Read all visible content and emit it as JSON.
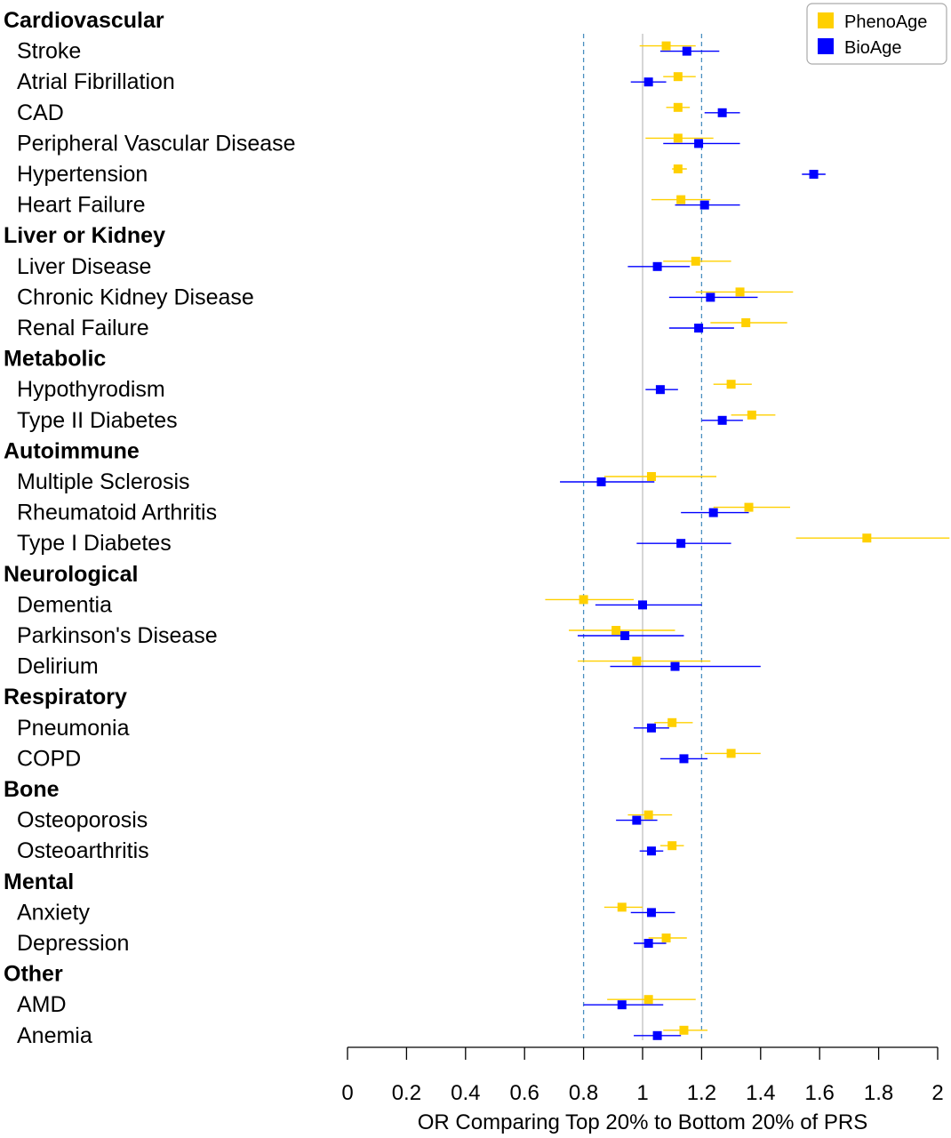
{
  "chart_data": {
    "type": "forest",
    "xlabel": "OR Comparing Top 20% to Bottom 20% of PRS",
    "xlim": [
      0,
      2
    ],
    "xticks": [
      "0",
      "0.2",
      "0.4",
      "0.6",
      "0.8",
      "1",
      "1.2",
      "1.4",
      "1.6",
      "1.8",
      "2"
    ],
    "xtick_values": [
      0,
      0.2,
      0.4,
      0.6,
      0.8,
      1,
      1.2,
      1.4,
      1.6,
      1.8,
      2
    ],
    "reference_line": 1,
    "dashed_lines": [
      0.8,
      1.2
    ],
    "legend_position": "top-right",
    "series": [
      {
        "name": "PhenoAge",
        "color": "#FFD000"
      },
      {
        "name": "BioAge",
        "color": "#0000FF"
      }
    ],
    "groups": [
      {
        "name": "Cardiovascular",
        "items": [
          {
            "label": "Stroke",
            "pheno": {
              "or": 1.08,
              "lo": 0.99,
              "hi": 1.18
            },
            "bio": {
              "or": 1.15,
              "lo": 1.06,
              "hi": 1.26
            }
          },
          {
            "label": "Atrial Fibrillation",
            "pheno": {
              "or": 1.12,
              "lo": 1.07,
              "hi": 1.18
            },
            "bio": {
              "or": 1.02,
              "lo": 0.96,
              "hi": 1.08
            }
          },
          {
            "label": "CAD",
            "pheno": {
              "or": 1.12,
              "lo": 1.08,
              "hi": 1.16
            },
            "bio": {
              "or": 1.27,
              "lo": 1.21,
              "hi": 1.33
            }
          },
          {
            "label": "Peripheral Vascular Disease",
            "pheno": {
              "or": 1.12,
              "lo": 1.01,
              "hi": 1.24
            },
            "bio": {
              "or": 1.19,
              "lo": 1.07,
              "hi": 1.33
            }
          },
          {
            "label": "Hypertension",
            "pheno": {
              "or": 1.12,
              "lo": 1.1,
              "hi": 1.15
            },
            "bio": {
              "or": 1.58,
              "lo": 1.54,
              "hi": 1.62
            }
          },
          {
            "label": "Heart Failure",
            "pheno": {
              "or": 1.13,
              "lo": 1.03,
              "hi": 1.23
            },
            "bio": {
              "or": 1.21,
              "lo": 1.11,
              "hi": 1.33
            }
          }
        ]
      },
      {
        "name": "Liver or Kidney",
        "items": [
          {
            "label": "Liver Disease",
            "pheno": {
              "or": 1.18,
              "lo": 1.07,
              "hi": 1.3
            },
            "bio": {
              "or": 1.05,
              "lo": 0.95,
              "hi": 1.16
            }
          },
          {
            "label": "Chronic Kidney Disease",
            "pheno": {
              "or": 1.33,
              "lo": 1.18,
              "hi": 1.51
            },
            "bio": {
              "or": 1.23,
              "lo": 1.09,
              "hi": 1.39
            }
          },
          {
            "label": "Renal Failure",
            "pheno": {
              "or": 1.35,
              "lo": 1.23,
              "hi": 1.49
            },
            "bio": {
              "or": 1.19,
              "lo": 1.09,
              "hi": 1.31
            }
          }
        ]
      },
      {
        "name": "Metabolic",
        "items": [
          {
            "label": "Hypothyrodism",
            "pheno": {
              "or": 1.3,
              "lo": 1.24,
              "hi": 1.37
            },
            "bio": {
              "or": 1.06,
              "lo": 1.01,
              "hi": 1.12
            }
          },
          {
            "label": "Type II Diabetes",
            "pheno": {
              "or": 1.37,
              "lo": 1.3,
              "hi": 1.45
            },
            "bio": {
              "or": 1.27,
              "lo": 1.2,
              "hi": 1.34
            }
          }
        ]
      },
      {
        "name": "Autoimmune",
        "items": [
          {
            "label": "Multiple Sclerosis",
            "pheno": {
              "or": 1.03,
              "lo": 0.87,
              "hi": 1.25
            },
            "bio": {
              "or": 0.86,
              "lo": 0.72,
              "hi": 1.04
            }
          },
          {
            "label": "Rheumatoid Arthritis",
            "pheno": {
              "or": 1.36,
              "lo": 1.24,
              "hi": 1.5
            },
            "bio": {
              "or": 1.24,
              "lo": 1.13,
              "hi": 1.36
            }
          },
          {
            "label": "Type I Diabetes",
            "pheno": {
              "or": 1.76,
              "lo": 1.52,
              "hi": 2.04
            },
            "bio": {
              "or": 1.13,
              "lo": 0.98,
              "hi": 1.3
            }
          }
        ]
      },
      {
        "name": "Neurological",
        "items": [
          {
            "label": "Dementia",
            "pheno": {
              "or": 0.8,
              "lo": 0.67,
              "hi": 0.97
            },
            "bio": {
              "or": 1.0,
              "lo": 0.84,
              "hi": 1.2
            }
          },
          {
            "label": "Parkinson's Disease",
            "pheno": {
              "or": 0.91,
              "lo": 0.75,
              "hi": 1.11
            },
            "bio": {
              "or": 0.94,
              "lo": 0.78,
              "hi": 1.14
            }
          },
          {
            "label": "Delirium",
            "pheno": {
              "or": 0.98,
              "lo": 0.78,
              "hi": 1.23
            },
            "bio": {
              "or": 1.11,
              "lo": 0.89,
              "hi": 1.4
            }
          }
        ]
      },
      {
        "name": "Respiratory",
        "items": [
          {
            "label": "Pneumonia",
            "pheno": {
              "or": 1.1,
              "lo": 1.04,
              "hi": 1.17
            },
            "bio": {
              "or": 1.03,
              "lo": 0.97,
              "hi": 1.09
            }
          },
          {
            "label": "COPD",
            "pheno": {
              "or": 1.3,
              "lo": 1.21,
              "hi": 1.4
            },
            "bio": {
              "or": 1.14,
              "lo": 1.06,
              "hi": 1.22
            }
          }
        ]
      },
      {
        "name": "Bone",
        "items": [
          {
            "label": "Osteoporosis",
            "pheno": {
              "or": 1.02,
              "lo": 0.95,
              "hi": 1.1
            },
            "bio": {
              "or": 0.98,
              "lo": 0.91,
              "hi": 1.05
            }
          },
          {
            "label": "Osteoarthritis",
            "pheno": {
              "or": 1.1,
              "lo": 1.06,
              "hi": 1.14
            },
            "bio": {
              "or": 1.03,
              "lo": 0.99,
              "hi": 1.07
            }
          }
        ]
      },
      {
        "name": "Mental",
        "items": [
          {
            "label": "Anxiety",
            "pheno": {
              "or": 0.93,
              "lo": 0.87,
              "hi": 1.0
            },
            "bio": {
              "or": 1.03,
              "lo": 0.96,
              "hi": 1.11
            }
          },
          {
            "label": "Depression",
            "pheno": {
              "or": 1.08,
              "lo": 1.02,
              "hi": 1.15
            },
            "bio": {
              "or": 1.02,
              "lo": 0.97,
              "hi": 1.08
            }
          }
        ]
      },
      {
        "name": "Other",
        "items": [
          {
            "label": "AMD",
            "pheno": {
              "or": 1.02,
              "lo": 0.88,
              "hi": 1.18
            },
            "bio": {
              "or": 0.93,
              "lo": 0.8,
              "hi": 1.07
            }
          },
          {
            "label": "Anemia",
            "pheno": {
              "or": 1.14,
              "lo": 1.07,
              "hi": 1.22
            },
            "bio": {
              "or": 1.05,
              "lo": 0.97,
              "hi": 1.13
            }
          }
        ]
      }
    ]
  }
}
